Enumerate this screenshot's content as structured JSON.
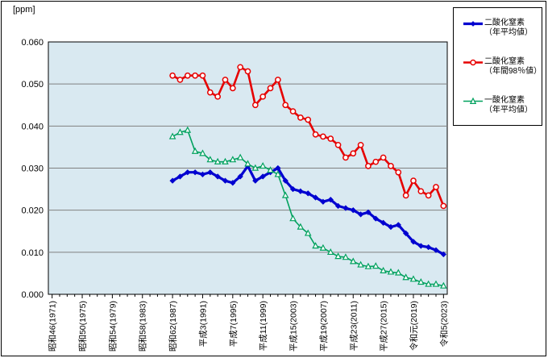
{
  "chart_data": {
    "type": "line",
    "title": "",
    "unit_label": "[ppm]",
    "xlabel": "",
    "ylabel": "[ppm]",
    "ylim": [
      0.0,
      0.06
    ],
    "ytick_step": 0.01,
    "ytick_labels": [
      "0.000",
      "0.010",
      "0.020",
      "0.030",
      "0.040",
      "0.050",
      "0.060"
    ],
    "grid": "horizontal-only",
    "plot_bg_color": "#d9e9f1",
    "grid_color": "#808080",
    "legend_position": "top-right-outside",
    "x_axis": {
      "first_year": 1971,
      "last_year": 2023,
      "tick_label_every_years": 4,
      "tick_labels": [
        "昭和46(1971)",
        "昭和50(1975)",
        "昭和54(1979)",
        "昭和58(1983)",
        "昭和62(1987)",
        "平成3(1991)",
        "平成7(1995)",
        "平成11(1999)",
        "平成15(2003)",
        "平成19(2007)",
        "平成23(2011)",
        "平成27(2015)",
        "令和元(2019)",
        "令和5(2023)"
      ],
      "labels_rotated_degrees": 90
    },
    "data_start_year": 1987,
    "series": [
      {
        "id": "no2-annual-average",
        "name_line1": "二酸化窒素",
        "name_line2": "（年平均値）",
        "color": "#0000d0",
        "marker": "diamond-filled",
        "line_width": 3.2,
        "values": [
          0.027,
          0.028,
          0.029,
          0.029,
          0.0285,
          0.029,
          0.028,
          0.027,
          0.0265,
          0.028,
          0.0305,
          0.027,
          0.028,
          0.029,
          0.03,
          0.027,
          0.025,
          0.0245,
          0.024,
          0.023,
          0.022,
          0.0225,
          0.021,
          0.0205,
          0.02,
          0.019,
          0.0195,
          0.018,
          0.017,
          0.016,
          0.0165,
          0.0145,
          0.0125,
          0.0115,
          0.0112,
          0.0105,
          0.0095
        ]
      },
      {
        "id": "no2-annual-98percentile",
        "name_line1": "二酸化窒素",
        "name_line2": "（年間98％値）",
        "color": "#e60000",
        "marker": "circle-open",
        "line_width": 2.6,
        "values": [
          0.052,
          0.051,
          0.052,
          0.052,
          0.052,
          0.048,
          0.047,
          0.051,
          0.049,
          0.054,
          0.053,
          0.045,
          0.047,
          0.049,
          0.051,
          0.045,
          0.0435,
          0.042,
          0.0415,
          0.038,
          0.0375,
          0.037,
          0.0355,
          0.0325,
          0.0335,
          0.0355,
          0.0305,
          0.0315,
          0.0325,
          0.0305,
          0.029,
          0.0235,
          0.027,
          0.0245,
          0.0235,
          0.0255,
          0.021
        ]
      },
      {
        "id": "no-annual-average",
        "name_line1": "一酸化窒素",
        "name_line2": "（年平均値）",
        "color": "#00a15e",
        "marker": "triangle-open",
        "line_width": 1.6,
        "values": [
          0.0375,
          0.0385,
          0.039,
          0.034,
          0.0335,
          0.032,
          0.0315,
          0.0315,
          0.032,
          0.0325,
          0.031,
          0.03,
          0.0305,
          0.0295,
          0.0285,
          0.0235,
          0.018,
          0.016,
          0.0145,
          0.0115,
          0.011,
          0.01,
          0.009,
          0.0088,
          0.0078,
          0.007,
          0.0066,
          0.0067,
          0.0056,
          0.0053,
          0.0051,
          0.004,
          0.0036,
          0.0029,
          0.0024,
          0.0024,
          0.002
        ]
      }
    ]
  }
}
